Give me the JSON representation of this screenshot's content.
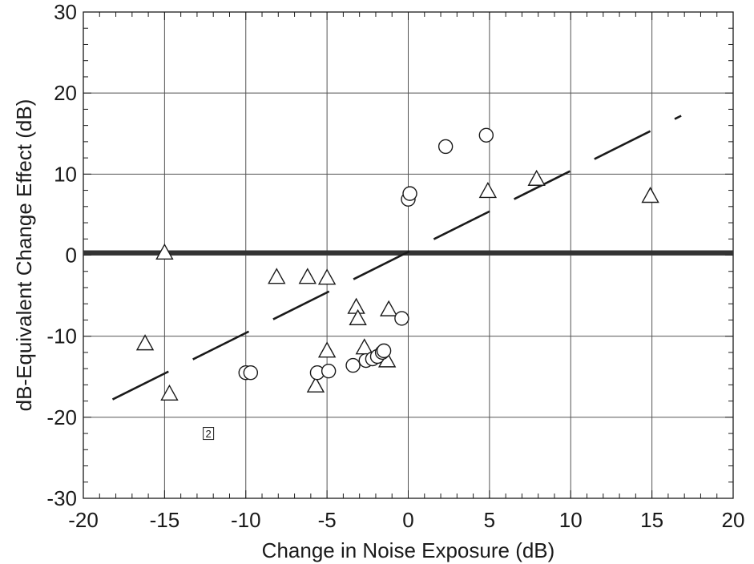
{
  "chart_data": {
    "type": "scatter",
    "title": "",
    "xlabel": "Change in Noise Exposure (dB)",
    "ylabel": "dB-Equivalent Change Effect (dB)",
    "xlim": [
      -20,
      20
    ],
    "ylim": [
      -30,
      30
    ],
    "xticks": [
      -20,
      -15,
      -10,
      -5,
      0,
      5,
      10,
      15,
      20
    ],
    "yticks": [
      -30,
      -20,
      -10,
      0,
      10,
      20,
      30
    ],
    "grid": true,
    "series": [
      {
        "marker": "triangle",
        "x": [
          -15,
          -16.2,
          -14.7,
          -8.1,
          -6.2,
          -5.0,
          -5.7,
          -5.0,
          -3.2,
          -3.1,
          -1.2,
          -2.7,
          -1.3,
          4.9,
          7.9,
          14.9
        ],
        "y": [
          0.2,
          -11,
          -17.2,
          -2.8,
          -2.8,
          -2.9,
          -16.2,
          -11.9,
          -6.5,
          -7.9,
          -6.8,
          -11.5,
          -13.1,
          7.8,
          9.3,
          7.2
        ]
      },
      {
        "marker": "circle",
        "x": [
          -10.0,
          -9.7,
          -5.6,
          -4.9,
          -3.4,
          -2.6,
          -2.2,
          -1.9,
          -1.6,
          -1.5,
          -0.4,
          0.0,
          0.1,
          2.3,
          4.8
        ],
        "y": [
          -14.5,
          -14.5,
          -14.5,
          -14.3,
          -13.6,
          -13.0,
          -12.8,
          -12.5,
          -12.0,
          -11.8,
          -7.8,
          6.9,
          7.6,
          13.4,
          14.8
        ]
      }
    ],
    "reference_lines": [
      {
        "style": "solid-thick",
        "x": [
          -20,
          20
        ],
        "y": [
          0.3,
          0.3
        ]
      },
      {
        "style": "dashed",
        "x": [
          -18.2,
          16.8
        ],
        "y": [
          -17.8,
          17.2
        ]
      }
    ],
    "annotations": [
      {
        "text": "2",
        "x": -12.3,
        "y": -22.0
      }
    ]
  }
}
